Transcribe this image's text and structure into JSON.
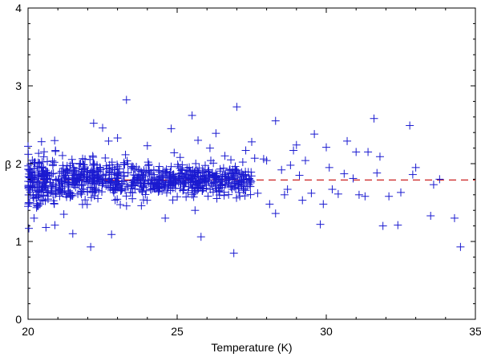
{
  "chart_data": {
    "type": "scatter",
    "xlabel": "Temperature (K)",
    "ylabel": "β",
    "xlim": [
      20,
      35
    ],
    "ylim": [
      0,
      4
    ],
    "x_ticks": [
      20,
      25,
      30,
      35
    ],
    "y_ticks": [
      0,
      1,
      2,
      3,
      4
    ],
    "x_tick_labels": [
      "20",
      "25",
      "30",
      "35"
    ],
    "y_tick_labels": [
      "0",
      "1",
      "2",
      "3",
      "4"
    ],
    "grid": false,
    "marker": "plus",
    "marker_color": "#1a1ad0",
    "reference_line": {
      "y": 1.79,
      "style": "dashed",
      "color": "#cc2020"
    },
    "series": [
      {
        "points": [
          [
            27.0,
            2.73
          ],
          [
            25.5,
            2.62
          ],
          [
            23.3,
            2.82
          ],
          [
            22.2,
            2.52
          ],
          [
            22.5,
            2.46
          ],
          [
            24.8,
            2.45
          ],
          [
            26.3,
            2.39
          ],
          [
            25.7,
            2.3
          ],
          [
            28.3,
            2.55
          ],
          [
            29.6,
            2.38
          ],
          [
            31.6,
            2.58
          ],
          [
            32.8,
            2.49
          ],
          [
            27.5,
            2.28
          ],
          [
            29.0,
            2.24
          ],
          [
            30.7,
            2.29
          ],
          [
            31.4,
            2.15
          ],
          [
            31.8,
            2.09
          ],
          [
            30.0,
            2.21
          ],
          [
            28.9,
            2.17
          ],
          [
            31.0,
            2.15
          ],
          [
            33.0,
            1.95
          ],
          [
            33.6,
            1.73
          ],
          [
            32.5,
            1.63
          ],
          [
            31.1,
            1.6
          ],
          [
            30.4,
            1.61
          ],
          [
            30.2,
            1.67
          ],
          [
            29.9,
            1.48
          ],
          [
            29.5,
            1.62
          ],
          [
            28.7,
            1.67
          ],
          [
            29.2,
            1.53
          ],
          [
            29.8,
            1.22
          ],
          [
            28.3,
            1.36
          ],
          [
            28.1,
            1.48
          ],
          [
            27.7,
            1.62
          ],
          [
            29.1,
            1.85
          ],
          [
            30.6,
            1.87
          ],
          [
            31.9,
            1.2
          ],
          [
            32.4,
            1.21
          ],
          [
            33.5,
            1.33
          ],
          [
            34.3,
            1.3
          ],
          [
            34.5,
            0.93
          ],
          [
            33.8,
            1.8
          ],
          [
            32.1,
            1.58
          ],
          [
            30.9,
            1.81
          ],
          [
            30.1,
            1.95
          ],
          [
            29.3,
            2.04
          ],
          [
            28.5,
            1.92
          ],
          [
            27.9,
            2.06
          ],
          [
            27.2,
            2.02
          ],
          [
            26.8,
            1.71
          ],
          [
            26.9,
            0.85
          ],
          [
            25.8,
            1.06
          ],
          [
            25.6,
            1.4
          ],
          [
            24.6,
            1.3
          ],
          [
            23.8,
            1.46
          ],
          [
            22.8,
            1.09
          ],
          [
            22.1,
            0.93
          ],
          [
            21.5,
            1.1
          ],
          [
            20.6,
            1.18
          ],
          [
            20.2,
            1.3
          ],
          [
            20.9,
            1.21
          ],
          [
            21.2,
            1.35
          ],
          [
            20.4,
            1.48
          ],
          [
            24.0,
            2.23
          ],
          [
            23.0,
            2.33
          ],
          [
            22.7,
            2.29
          ],
          [
            24.9,
            2.14
          ],
          [
            26.1,
            2.2
          ],
          [
            27.3,
            2.17
          ],
          [
            28.0,
            2.04
          ],
          [
            25.1,
            2.08
          ],
          [
            26.6,
            2.1
          ],
          [
            27.6,
            2.07
          ],
          [
            28.8,
            1.98
          ],
          [
            31.3,
            1.58
          ],
          [
            32.9,
            1.86
          ],
          [
            26.4,
            1.64
          ],
          [
            27.1,
            1.58
          ],
          [
            28.6,
            1.6
          ],
          [
            31.7,
            1.88
          ]
        ]
      }
    ],
    "dense_cluster": {
      "count": 900,
      "x_range": [
        20.0,
        27.5
      ],
      "center_y": 1.79
    }
  }
}
